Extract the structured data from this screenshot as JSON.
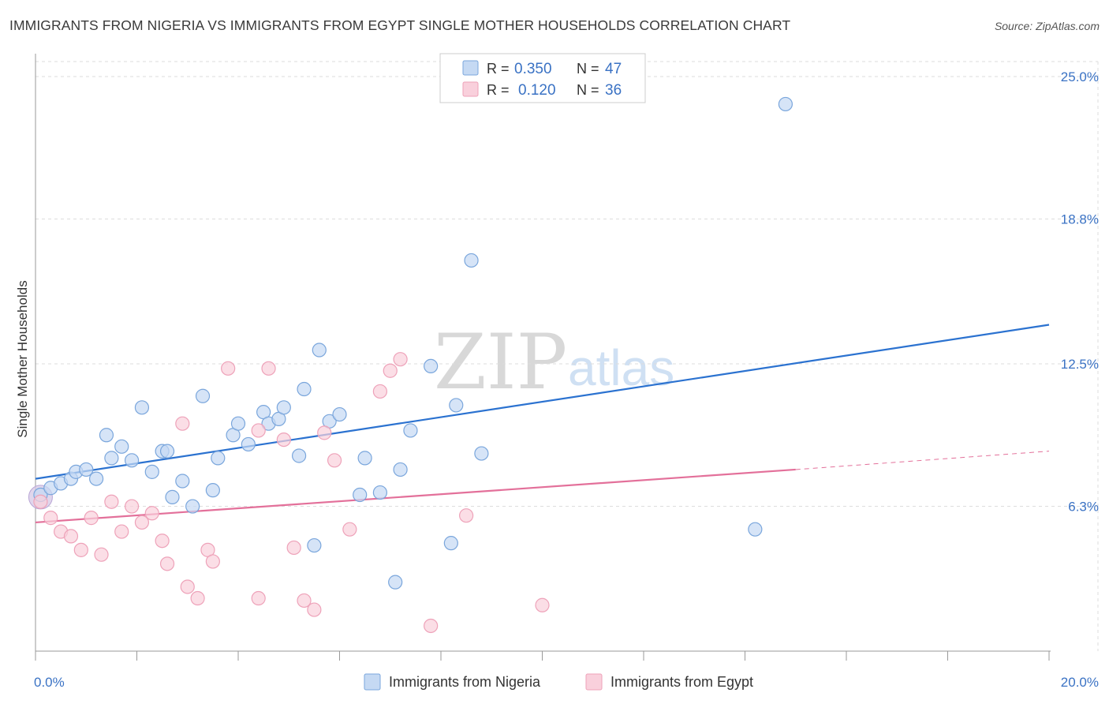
{
  "title": "IMMIGRANTS FROM NIGERIA VS IMMIGRANTS FROM EGYPT SINGLE MOTHER HOUSEHOLDS CORRELATION CHART",
  "source": "Source: ZipAtlas.com",
  "watermark": {
    "zip": "ZIP",
    "atlas": "atlas"
  },
  "colors": {
    "nigeria_fill": "#c5d9f3",
    "nigeria_stroke": "#7aa6dc",
    "nigeria_line": "#2b72d0",
    "egypt_fill": "#f9d0dc",
    "egypt_stroke": "#eea2b9",
    "egypt_line": "#e3709a",
    "accent_text": "#3a72c4",
    "grid": "#dddddd"
  },
  "legend": {
    "r_label": "R =",
    "n_label": "N =",
    "nigeria_r": "0.350",
    "nigeria_n": "47",
    "egypt_r": "0.120",
    "egypt_n": "36"
  },
  "chart_data": {
    "type": "scatter",
    "title": "IMMIGRANTS FROM NIGERIA VS IMMIGRANTS FROM EGYPT SINGLE MOTHER HOUSEHOLDS CORRELATION CHART",
    "xlabel": "",
    "ylabel": "Single Mother Households",
    "xlim": [
      0,
      20
    ],
    "ylim": [
      0,
      25
    ],
    "x_tick_labels": [
      "0.0%",
      "20.0%"
    ],
    "y_ticks": [
      6.3,
      12.5,
      18.8,
      25.0
    ],
    "y_tick_labels": [
      "6.3%",
      "12.5%",
      "18.8%",
      "25.0%"
    ],
    "grid": true,
    "legend_position": "top-center",
    "series": [
      {
        "name": "Immigrants from Nigeria",
        "r": 0.35,
        "n": 47,
        "trend": {
          "x": [
            0,
            20
          ],
          "y": [
            7.5,
            14.2
          ]
        },
        "points": [
          [
            0.1,
            6.8
          ],
          [
            0.3,
            7.1
          ],
          [
            0.5,
            7.3
          ],
          [
            0.7,
            7.5
          ],
          [
            0.8,
            7.8
          ],
          [
            1.0,
            7.9
          ],
          [
            1.2,
            7.5
          ],
          [
            1.4,
            9.4
          ],
          [
            1.5,
            8.4
          ],
          [
            1.7,
            8.9
          ],
          [
            1.9,
            8.3
          ],
          [
            2.1,
            10.6
          ],
          [
            2.3,
            7.8
          ],
          [
            2.5,
            8.7
          ],
          [
            2.6,
            8.7
          ],
          [
            2.7,
            6.7
          ],
          [
            2.9,
            7.4
          ],
          [
            3.1,
            6.3
          ],
          [
            3.3,
            11.1
          ],
          [
            3.5,
            7.0
          ],
          [
            3.6,
            8.4
          ],
          [
            3.9,
            9.4
          ],
          [
            4.0,
            9.9
          ],
          [
            4.2,
            9.0
          ],
          [
            4.5,
            10.4
          ],
          [
            4.6,
            9.9
          ],
          [
            4.8,
            10.1
          ],
          [
            4.9,
            10.6
          ],
          [
            5.2,
            8.5
          ],
          [
            5.3,
            11.4
          ],
          [
            5.5,
            4.6
          ],
          [
            5.6,
            13.1
          ],
          [
            5.8,
            10.0
          ],
          [
            6.0,
            10.3
          ],
          [
            6.4,
            6.8
          ],
          [
            6.5,
            8.4
          ],
          [
            6.8,
            6.9
          ],
          [
            7.1,
            3.0
          ],
          [
            7.2,
            7.9
          ],
          [
            7.4,
            9.6
          ],
          [
            7.8,
            12.4
          ],
          [
            8.2,
            4.7
          ],
          [
            8.3,
            10.7
          ],
          [
            8.6,
            17.0
          ],
          [
            8.8,
            8.6
          ],
          [
            14.2,
            5.3
          ],
          [
            14.8,
            23.8
          ]
        ]
      },
      {
        "name": "Immigrants from Egypt",
        "r": 0.12,
        "n": 36,
        "trend": {
          "x": [
            0,
            15
          ],
          "y": [
            5.6,
            7.9
          ],
          "dashed_to": {
            "x": 20,
            "y": 8.7
          }
        },
        "points": [
          [
            0.1,
            6.5
          ],
          [
            0.3,
            5.8
          ],
          [
            0.5,
            5.2
          ],
          [
            0.7,
            5.0
          ],
          [
            0.9,
            4.4
          ],
          [
            1.1,
            5.8
          ],
          [
            1.3,
            4.2
          ],
          [
            1.5,
            6.5
          ],
          [
            1.7,
            5.2
          ],
          [
            1.9,
            6.3
          ],
          [
            2.1,
            5.6
          ],
          [
            2.3,
            6.0
          ],
          [
            2.5,
            4.8
          ],
          [
            2.6,
            3.8
          ],
          [
            2.9,
            9.9
          ],
          [
            3.0,
            2.8
          ],
          [
            3.2,
            2.3
          ],
          [
            3.4,
            4.4
          ],
          [
            3.5,
            3.9
          ],
          [
            3.8,
            12.3
          ],
          [
            4.4,
            2.3
          ],
          [
            4.4,
            9.6
          ],
          [
            4.6,
            12.3
          ],
          [
            4.9,
            9.2
          ],
          [
            5.1,
            4.5
          ],
          [
            5.3,
            2.2
          ],
          [
            5.5,
            1.8
          ],
          [
            5.7,
            9.5
          ],
          [
            5.9,
            8.3
          ],
          [
            6.2,
            5.3
          ],
          [
            6.8,
            11.3
          ],
          [
            7.0,
            12.2
          ],
          [
            7.2,
            12.7
          ],
          [
            7.8,
            1.1
          ],
          [
            8.5,
            5.9
          ],
          [
            10.0,
            2.0
          ]
        ]
      }
    ]
  }
}
